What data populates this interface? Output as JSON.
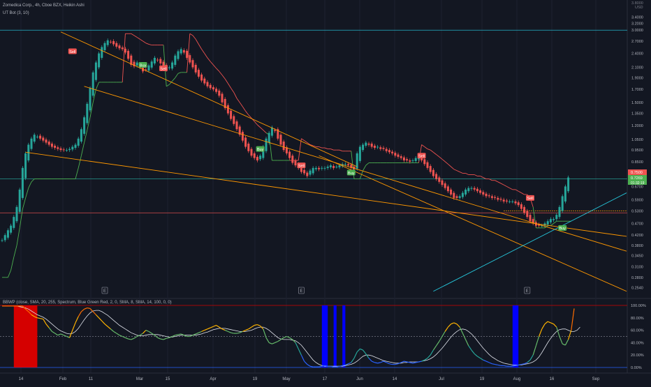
{
  "legend": {
    "title": "Zomedica Corp., 4h, Cboe BZX, Heikin Ashi",
    "ut_bot": "UT Bot (3, 10)",
    "bbwp": "BBWP (close, SMA, 20, 255, Spectrum, Blue Green Red, 2, 0, SMA, 8, SMA, 14, 100, 0, 0)"
  },
  "colors": {
    "background": "#131722",
    "up": "#26a69a",
    "down": "#ef5350",
    "ut_stop": "#4caf50",
    "resistance": "#ef5350",
    "trend": "#ff9800",
    "cyan": "#26c6da",
    "buy_label": "#4caf50",
    "sell_label": "#ef5350",
    "bbwp_extreme_high": "#d50000",
    "bbwp_extreme_low": "#0000ff"
  },
  "chart_data": [
    {
      "type": "candlestick",
      "subtype": "heikin-ashi",
      "scale": "log",
      "currency": "USD",
      "x_ticks": [
        "14",
        "Feb",
        "11",
        "Mar",
        "15",
        "Apr",
        "19",
        "May",
        "17",
        "Jun",
        "14",
        "Jul",
        "19",
        "Aug",
        "16",
        "Sep"
      ],
      "y_ticks": [
        "3.4000",
        "3.2000",
        "3.0000",
        "2.7000",
        "2.4000",
        "2.1000",
        "1.9000",
        "1.7000",
        "1.5000",
        "1.3500",
        "1.2000",
        "1.0500",
        "0.9500",
        "0.8500",
        "0.7500",
        "0.6700",
        "0.5900",
        "0.5300",
        "0.4700",
        "0.4200",
        "0.3800",
        "0.3450",
        "0.3100",
        "0.2800",
        "0.2540"
      ],
      "y_top_cut": "3.8000",
      "ylim": [
        0.235,
        3.9
      ],
      "price_labels": [
        {
          "text": "0.7500",
          "color": "#ef5350"
        },
        {
          "text": "0.7269",
          "color": "#4caf50"
        },
        {
          "text": "01:32:19",
          "color": "#4caf50"
        }
      ],
      "horizontal_levels": [
        {
          "value": 3.0,
          "color": "#26c6da"
        },
        {
          "value": 0.72,
          "color": "#26a69a"
        },
        {
          "value": 0.52,
          "color": "#ef5350"
        }
      ],
      "signals": [
        {
          "label": "Sell",
          "x": 24,
          "y": 2.45
        },
        {
          "label": "Buy",
          "x": 48,
          "y": 2.15
        },
        {
          "label": "Sell",
          "x": 55,
          "y": 2.08
        },
        {
          "label": "Buy",
          "x": 88,
          "y": 0.96
        },
        {
          "label": "Sell",
          "x": 102,
          "y": 0.82
        },
        {
          "label": "Buy",
          "x": 119,
          "y": 0.765
        },
        {
          "label": "Sell",
          "x": 143,
          "y": 0.9
        },
        {
          "label": "Sell",
          "x": 180,
          "y": 0.6
        },
        {
          "label": "Buy",
          "x": 191,
          "y": 0.45
        }
      ],
      "events": [
        {
          "label": "E",
          "x": 35
        },
        {
          "label": "E",
          "x": 102
        },
        {
          "label": "E",
          "x": 179
        }
      ],
      "series": [
        {
          "name": "close",
          "values": [
            0.4,
            0.42,
            0.44,
            0.46,
            0.5,
            0.55,
            0.65,
            0.8,
            0.92,
            1.0,
            1.06,
            1.1,
            1.08,
            1.06,
            1.04,
            1.02,
            1.0,
            0.98,
            0.97,
            0.96,
            0.95,
            0.95,
            0.95,
            0.96,
            0.98,
            1.0,
            1.06,
            1.16,
            1.3,
            1.48,
            1.72,
            2.0,
            2.2,
            2.4,
            2.55,
            2.65,
            2.72,
            2.68,
            2.62,
            2.56,
            2.52,
            2.5,
            2.42,
            2.28,
            2.15,
            2.12,
            2.2,
            2.1,
            2.02,
            2.05,
            2.14,
            2.22,
            2.3,
            2.25,
            2.18,
            2.12,
            2.05,
            2.1,
            2.2,
            2.35,
            2.45,
            2.5,
            2.42,
            2.3,
            2.2,
            2.1,
            2.0,
            1.92,
            1.85,
            1.8,
            1.75,
            1.72,
            1.7,
            1.66,
            1.6,
            1.5,
            1.42,
            1.35,
            1.28,
            1.22,
            1.16,
            1.1,
            1.04,
            0.98,
            0.94,
            0.9,
            0.88,
            0.86,
            0.9,
            0.98,
            1.06,
            1.12,
            1.18,
            1.14,
            1.06,
            1.0,
            0.95,
            0.92,
            0.88,
            0.84,
            0.82,
            0.8,
            0.77,
            0.76,
            0.74,
            0.78,
            0.8,
            0.8,
            0.79,
            0.8,
            0.8,
            0.81,
            0.82,
            0.8,
            0.81,
            0.82,
            0.83,
            0.83,
            0.82,
            0.8,
            0.79,
            0.92,
            0.98,
            1.0,
            1.02,
            1.0,
            0.98,
            0.97,
            0.98,
            0.96,
            0.96,
            0.94,
            0.93,
            0.92,
            0.9,
            0.89,
            0.88,
            0.86,
            0.86,
            0.85,
            0.86,
            0.88,
            0.88,
            0.86,
            0.83,
            0.8,
            0.77,
            0.74,
            0.72,
            0.7,
            0.68,
            0.66,
            0.64,
            0.62,
            0.6,
            0.6,
            0.61,
            0.63,
            0.65,
            0.66,
            0.66,
            0.65,
            0.64,
            0.63,
            0.62,
            0.61,
            0.61,
            0.6,
            0.6,
            0.59,
            0.59,
            0.58,
            0.58,
            0.58,
            0.58,
            0.57,
            0.56,
            0.54,
            0.52,
            0.5,
            0.48,
            0.47,
            0.46,
            0.46,
            0.46,
            0.47,
            0.48,
            0.49,
            0.49,
            0.51,
            0.55,
            0.61,
            0.67,
            0.73
          ]
        },
        {
          "name": "UT Bot (3, 10)",
          "values": [
            0.28,
            0.28,
            0.28,
            0.3,
            0.34,
            0.38,
            0.45,
            0.54,
            0.6,
            0.66,
            0.7,
            0.72,
            0.72,
            0.72,
            0.72,
            0.72,
            0.72,
            0.72,
            0.72,
            0.72,
            0.72,
            0.72,
            0.72,
            0.72,
            0.72,
            0.72,
            0.8,
            0.9,
            1.02,
            1.15,
            1.3,
            1.5,
            1.7,
            1.82,
            1.82,
            1.82,
            1.82,
            1.82,
            1.82,
            1.82,
            1.82,
            1.82,
            2.9,
            2.9,
            2.9,
            2.85,
            2.8,
            2.75,
            2.7,
            2.65,
            2.62,
            2.6,
            2.6,
            2.6,
            2.6,
            2.6,
            1.75,
            1.78,
            1.84,
            1.9,
            1.98,
            2.0,
            2.0,
            2.0,
            2.9,
            2.85,
            2.75,
            2.62,
            2.5,
            2.4,
            2.3,
            2.22,
            2.15,
            2.08,
            2.02,
            1.95,
            1.88,
            1.8,
            1.72,
            1.65,
            1.56,
            1.5,
            1.44,
            1.38,
            1.33,
            1.29,
            1.25,
            1.21,
            1.18,
            1.15,
            1.12,
            1.1,
            0.86,
            0.86,
            0.86,
            0.86,
            0.86,
            0.86,
            0.86,
            0.86,
            0.86,
            0.86,
            1.06,
            1.04,
            1.02,
            1.0,
            0.99,
            0.98,
            0.98,
            0.97,
            0.97,
            0.96,
            0.96,
            0.95,
            0.95,
            0.95,
            0.94,
            0.94,
            0.94,
            0.94,
            0.72,
            0.72,
            0.72,
            0.78,
            0.82,
            0.84,
            0.84,
            0.84,
            0.84,
            0.84,
            0.84,
            0.84,
            0.84,
            0.84,
            0.84,
            0.84,
            0.84,
            0.84,
            0.84,
            0.84,
            0.84,
            0.84,
            0.84,
            1.0,
            0.98,
            0.96,
            0.95,
            0.93,
            0.91,
            0.89,
            0.87,
            0.85,
            0.83,
            0.81,
            0.79,
            0.78,
            0.77,
            0.76,
            0.76,
            0.75,
            0.75,
            0.75,
            0.74,
            0.74,
            0.73,
            0.72,
            0.72,
            0.71,
            0.71,
            0.7,
            0.69,
            0.68,
            0.67,
            0.66,
            0.65,
            0.65,
            0.64,
            0.63,
            0.62,
            0.62,
            0.6,
            0.55,
            0.45,
            0.45,
            0.45,
            0.45,
            0.46,
            0.46,
            0.47,
            0.48,
            0.48,
            0.48,
            0.48,
            0.48,
            0.48
          ]
        }
      ],
      "trendlines": [
        {
          "color": "#ff9800",
          "from": {
            "x": 20,
            "y": 2.95
          },
          "to": {
            "x": 121,
            "y": 0.81
          }
        },
        {
          "color": "#ff9800",
          "from": {
            "x": 28,
            "y": 1.75
          },
          "to": {
            "x": 220,
            "y": 0.36
          }
        },
        {
          "color": "#ff9800",
          "from": {
            "x": 8,
            "y": 0.93
          },
          "to": {
            "x": 220,
            "y": 0.415
          }
        },
        {
          "color": "#ff9800",
          "from": {
            "x": 108,
            "y": 0.9
          },
          "to": {
            "x": 220,
            "y": 0.245
          }
        },
        {
          "color": "#26c6da",
          "from": {
            "x": 147,
            "y": 0.245
          },
          "to": {
            "x": 224,
            "y": 0.63
          }
        }
      ],
      "dotted_level": {
        "value": 0.53,
        "from_x": 171,
        "to_x": 224,
        "color": "#ff9800"
      }
    },
    {
      "type": "line",
      "title": "BBWP (close, SMA, 20, 255, Spectrum, Blue Green Red, 2, 0, SMA, 8, SMA, 14, 100, 0, 0)",
      "y_ticks": [
        "100.00%",
        "80.00%",
        "60.00%",
        "40.00%",
        "20.00%",
        "0.00%"
      ],
      "ylim": [
        0,
        100
      ],
      "levels": [
        100,
        50,
        0
      ],
      "series": [
        {
          "name": "BBWP",
          "values": [
            99,
            99,
            99,
            99,
            99,
            99,
            99,
            99,
            94,
            90,
            85,
            82,
            80,
            79,
            78,
            70,
            64,
            58,
            55,
            52,
            54,
            52,
            50,
            48,
            60,
            72,
            82,
            90,
            94,
            96,
            95,
            90,
            85,
            80,
            75,
            70,
            66,
            62,
            58,
            55,
            52,
            50,
            48,
            46,
            45,
            47,
            50,
            52,
            55,
            60,
            58,
            55,
            52,
            48,
            46,
            45,
            47,
            48,
            50,
            52,
            53,
            54,
            52,
            50,
            50,
            52,
            54,
            56,
            58,
            60,
            62,
            64,
            66,
            68,
            65,
            62,
            60,
            58,
            56,
            55,
            55,
            56,
            58,
            60,
            62,
            65,
            68,
            69,
            67,
            62,
            48,
            40,
            38,
            40,
            42,
            45,
            48,
            50,
            48,
            45,
            40,
            30,
            20,
            10,
            5,
            2,
            1,
            1,
            1,
            2,
            3,
            2,
            2,
            1,
            1,
            2,
            3,
            4,
            6,
            8,
            15,
            25,
            30,
            28,
            22,
            15,
            10,
            8,
            7,
            8,
            10,
            8,
            6,
            5,
            5,
            6,
            8,
            10,
            9,
            8,
            7,
            8,
            9,
            10,
            12,
            15,
            20,
            28,
            35,
            42,
            50,
            58,
            65,
            70,
            72,
            70,
            65,
            55,
            45,
            35,
            28,
            22,
            18,
            15,
            12,
            10,
            8,
            6,
            5,
            4,
            3,
            3,
            2,
            2,
            2,
            3,
            4,
            5,
            6,
            8,
            12,
            20,
            35,
            50,
            62,
            70,
            74,
            72,
            70,
            65,
            50,
            38,
            36,
            45,
            60,
            95
          ]
        },
        {
          "name": "MA",
          "values": [
            99,
            99,
            99,
            99,
            99,
            99,
            98,
            97,
            96,
            94,
            91,
            88,
            85,
            83,
            81,
            78,
            74,
            70,
            66,
            62,
            59,
            57,
            55,
            54,
            55,
            58,
            63,
            70,
            77,
            83,
            88,
            91,
            92,
            92,
            90,
            87,
            84,
            80,
            76,
            72,
            68,
            65,
            62,
            59,
            56,
            54,
            52,
            51,
            51,
            52,
            53,
            53,
            53,
            53,
            52,
            51,
            50,
            49,
            49,
            50,
            51,
            52,
            52,
            52,
            52,
            52,
            52,
            53,
            54,
            56,
            57,
            59,
            61,
            62,
            63,
            63,
            63,
            62,
            61,
            60,
            59,
            58,
            58,
            58,
            59,
            60,
            62,
            64,
            65,
            65,
            63,
            60,
            56,
            52,
            48,
            46,
            45,
            45,
            45,
            44,
            43,
            40,
            36,
            30,
            24,
            18,
            12,
            8,
            5,
            3,
            2,
            2,
            2,
            2,
            2,
            2,
            2,
            3,
            4,
            5,
            7,
            10,
            14,
            18,
            20,
            20,
            19,
            17,
            15,
            13,
            11,
            10,
            9,
            8,
            7,
            7,
            7,
            8,
            8,
            9,
            9,
            9,
            9,
            10,
            11,
            12,
            14,
            17,
            21,
            26,
            31,
            37,
            43,
            49,
            54,
            58,
            61,
            62,
            61,
            58,
            54,
            49,
            43,
            37,
            31,
            26,
            21,
            17,
            14,
            11,
            9,
            7,
            6,
            5,
            4,
            4,
            4,
            4,
            5,
            6,
            7,
            9,
            12,
            17,
            24,
            32,
            40,
            47,
            53,
            58,
            61,
            62,
            62,
            60,
            58,
            58,
            60,
            65
          ]
        }
      ],
      "extreme_bars": [
        {
          "color": "#d50000",
          "x_from": 4,
          "x_to": 12
        },
        {
          "color": "#0000ff",
          "x_from": 109,
          "x_to": 111
        },
        {
          "color": "#0000ff",
          "x_from": 113,
          "x_to": 114
        },
        {
          "color": "#0000ff",
          "x_from": 116,
          "x_to": 117
        },
        {
          "color": "#0000ff",
          "x_from": 174,
          "x_to": 176
        }
      ]
    }
  ]
}
